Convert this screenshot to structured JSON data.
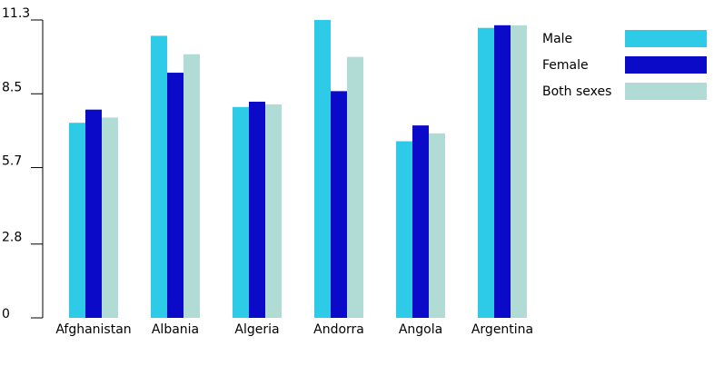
{
  "chart_data": {
    "type": "bar",
    "categories": [
      "Afghanistan",
      "Albania",
      "Algeria",
      "Andorra",
      "Angola",
      "Argentina"
    ],
    "series": [
      {
        "name": "Male",
        "color": "#2ecbe8",
        "values": [
          7.4,
          10.7,
          8.0,
          11.3,
          6.7,
          11.0
        ]
      },
      {
        "name": "Female",
        "color": "#0a0ac8",
        "values": [
          7.9,
          9.3,
          8.2,
          8.6,
          7.3,
          11.1
        ]
      },
      {
        "name": "Both sexes",
        "color": "#b0dcd5",
        "values": [
          7.6,
          10.0,
          8.1,
          9.9,
          7.0,
          11.1
        ]
      }
    ],
    "y_ticks": [
      "0",
      "2.8",
      "5.7",
      "8.5",
      "11.3"
    ],
    "ylim": [
      0,
      11.3
    ],
    "legend_position": "top-right",
    "grid": false
  }
}
